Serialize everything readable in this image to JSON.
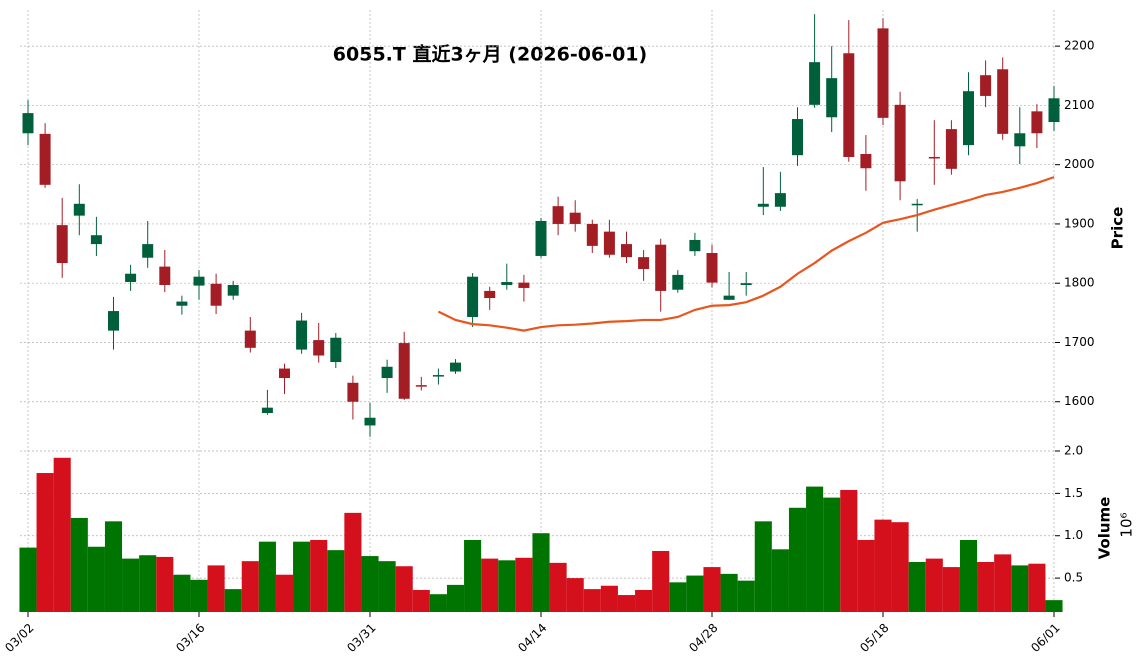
{
  "chart_data": {
    "type": "candlestick",
    "title": "6055.T  直近3ヶ月  (2026-06-01)",
    "categories": [
      "03/02",
      null,
      null,
      null,
      null,
      null,
      null,
      null,
      null,
      null,
      "03/16",
      null,
      null,
      null,
      null,
      null,
      null,
      null,
      null,
      null,
      "03/31",
      null,
      null,
      null,
      null,
      null,
      null,
      null,
      null,
      null,
      "04/14",
      null,
      null,
      null,
      null,
      null,
      null,
      null,
      null,
      null,
      "04/28",
      null,
      null,
      null,
      null,
      null,
      null,
      null,
      null,
      null,
      "05/18",
      null,
      null,
      null,
      null,
      null,
      null,
      null,
      null,
      null,
      "06/01"
    ],
    "open": [
      2053,
      2052,
      1898,
      1914,
      1866,
      1720,
      1802,
      1843,
      1828,
      1762,
      1796,
      1799,
      1779,
      1720,
      1581,
      1656,
      1688,
      1704,
      1667,
      1632,
      1560,
      1640,
      1699,
      1628,
      1643,
      1651,
      1743,
      1787,
      1797,
      1801,
      1846,
      1930,
      1919,
      1900,
      1887,
      1866,
      1844,
      1865,
      1789,
      1854,
      1851,
      1772,
      1797,
      1929,
      1929,
      2016,
      2101,
      2080,
      2188,
      2018,
      2230,
      2101,
      1932,
      2013,
      2060,
      2033,
      2151,
      2161,
      2031,
      2090,
      2072
    ],
    "high": [
      2109,
      2070,
      1944,
      1967,
      1912,
      1777,
      1831,
      1905,
      1856,
      1779,
      1822,
      1816,
      1804,
      1743,
      1620,
      1664,
      1750,
      1733,
      1716,
      1644,
      1598,
      1671,
      1718,
      1642,
      1656,
      1672,
      1817,
      1794,
      1833,
      1814,
      1910,
      1946,
      1940,
      1907,
      1907,
      1887,
      1856,
      1875,
      1822,
      1885,
      1865,
      1819,
      1819,
      1996,
      1988,
      2097,
      2254,
      2200,
      2244,
      2050,
      2247,
      2123,
      1942,
      2075,
      2075,
      2156,
      2176,
      2181,
      2097,
      2102,
      2133
    ],
    "low": [
      2033,
      1961,
      1809,
      1881,
      1846,
      1688,
      1787,
      1826,
      1785,
      1747,
      1772,
      1748,
      1772,
      1683,
      1578,
      1613,
      1681,
      1666,
      1657,
      1570,
      1541,
      1615,
      1603,
      1619,
      1629,
      1647,
      1726,
      1755,
      1789,
      1769,
      1843,
      1881,
      1887,
      1851,
      1843,
      1834,
      1804,
      1752,
      1784,
      1846,
      1793,
      1772,
      1779,
      1915,
      1922,
      1998,
      2096,
      2055,
      2005,
      1956,
      2067,
      1940,
      1887,
      1966,
      1983,
      2016,
      2097,
      2042,
      2001,
      2028,
      2057
    ],
    "close": [
      2087,
      1966,
      1834,
      1934,
      1881,
      1753,
      1816,
      1866,
      1797,
      1769,
      1811,
      1762,
      1797,
      1691,
      1590,
      1640,
      1737,
      1678,
      1708,
      1600,
      1573,
      1659,
      1605,
      1626,
      1645,
      1666,
      1811,
      1775,
      1802,
      1792,
      1905,
      1900,
      1900,
      1863,
      1848,
      1844,
      1824,
      1787,
      1814,
      1873,
      1801,
      1779,
      1800,
      1934,
      1952,
      2077,
      2173,
      2146,
      2013,
      1994,
      2079,
      1972,
      1934,
      2012,
      1993,
      2124,
      2116,
      2052,
      2053,
      2053,
      2112
    ],
    "up_color": "#00603c",
    "down_color": "#a31d25",
    "ylim": [
      1527,
      2261
    ],
    "yticks": [
      1600,
      1700,
      1800,
      1900,
      2000,
      2100,
      2200
    ],
    "ylabel": "Price",
    "grid": true,
    "moving_average": {
      "color": "#e8561e",
      "values": [
        null,
        null,
        null,
        null,
        null,
        null,
        null,
        null,
        null,
        null,
        null,
        null,
        null,
        null,
        null,
        null,
        null,
        null,
        null,
        null,
        null,
        null,
        null,
        null,
        1752,
        1738,
        1731,
        1729,
        1725,
        1720,
        1726,
        1729,
        1730,
        1732,
        1735,
        1736,
        1738,
        1738,
        1743,
        1755,
        1762,
        1763,
        1768,
        1779,
        1794,
        1816,
        1834,
        1855,
        1871,
        1885,
        1902,
        1908,
        1915,
        1924,
        1932,
        1940,
        1949,
        1954,
        1961,
        1969,
        1979
      ]
    },
    "volume": {
      "values": [
        0.86,
        1.74,
        1.92,
        1.21,
        0.87,
        1.17,
        0.73,
        0.77,
        0.75,
        0.54,
        0.48,
        0.65,
        0.37,
        0.7,
        0.93,
        0.54,
        0.93,
        0.95,
        0.83,
        1.27,
        0.76,
        0.7,
        0.64,
        0.36,
        0.31,
        0.42,
        0.95,
        0.73,
        0.71,
        0.74,
        1.03,
        0.68,
        0.5,
        0.37,
        0.41,
        0.3,
        0.36,
        0.82,
        0.45,
        0.53,
        0.63,
        0.55,
        0.47,
        1.17,
        0.84,
        1.33,
        1.58,
        1.45,
        1.54,
        0.95,
        1.19,
        1.16,
        0.69,
        0.73,
        0.63,
        0.95,
        0.69,
        0.78,
        0.65,
        0.67,
        0.24
      ],
      "ylim": [
        0.1,
        2.0
      ],
      "yticks": [
        0.5,
        {
          "value": 1.0,
          "label": "1.0"
        },
        1.5,
        {
          "value": 2.0,
          "label": "2.0"
        }
      ],
      "ylabel": "Volume",
      "scale_label": "10⁶",
      "up_color": "#007400",
      "down_color": "#d4101d"
    }
  }
}
